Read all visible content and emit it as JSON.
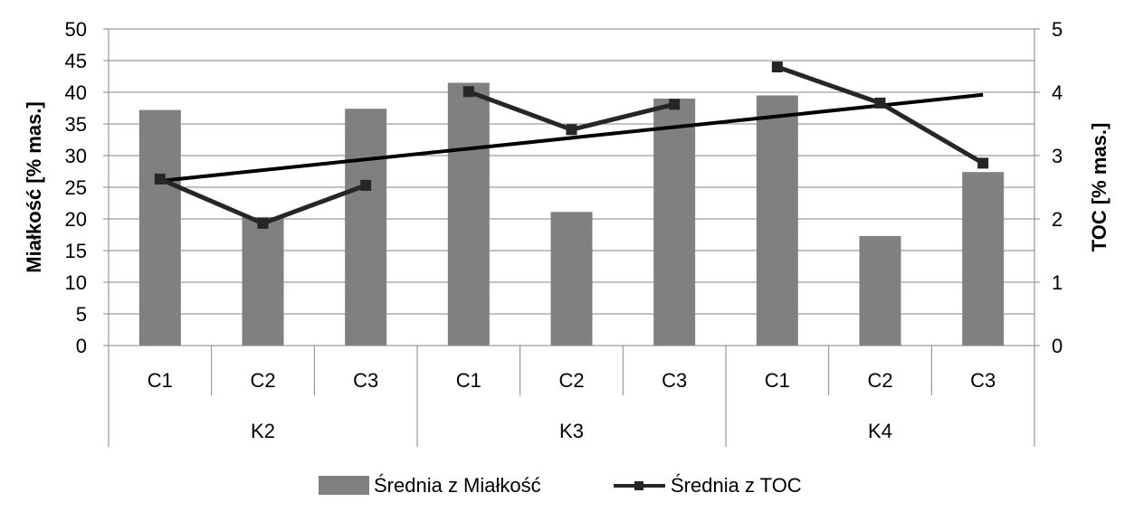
{
  "chart_data": {
    "type": "bar",
    "groups": [
      {
        "label": "K2",
        "categories": [
          "C1",
          "C2",
          "C3"
        ]
      },
      {
        "label": "K3",
        "categories": [
          "C1",
          "C2",
          "C3"
        ]
      },
      {
        "label": "K4",
        "categories": [
          "C1",
          "C2",
          "C3"
        ]
      }
    ],
    "series": [
      {
        "name": "Średnia z Miałkość",
        "type": "bar",
        "axis": "left",
        "color": "#808080",
        "values": [
          37.2,
          20.3,
          37.4,
          41.5,
          21.1,
          39.0,
          39.5,
          17.3,
          27.4
        ]
      },
      {
        "name": "Średnia z TOC",
        "type": "line",
        "axis": "right",
        "color": "#262626",
        "marker": "square",
        "segments": [
          [
            0,
            2
          ],
          [
            3,
            5
          ],
          [
            6,
            8
          ]
        ],
        "values": [
          2.63,
          1.93,
          2.53,
          4.01,
          3.41,
          3.81,
          4.4,
          3.83,
          2.88
        ]
      }
    ],
    "trendline": {
      "series": "Średnia z TOC",
      "type": "linear",
      "start": 2.6,
      "end": 3.96,
      "color": "#000000"
    },
    "ylabel": "Miałkość [% mas.]",
    "y2label": "TOC [% mas.]",
    "ylim": [
      0,
      50
    ],
    "yticks": [
      0,
      5,
      10,
      15,
      20,
      25,
      30,
      35,
      40,
      45,
      50
    ],
    "y2lim": [
      0,
      5
    ],
    "y2ticks": [
      0,
      1,
      2,
      3,
      4,
      5
    ],
    "grid": true,
    "legend_position": "bottom"
  }
}
